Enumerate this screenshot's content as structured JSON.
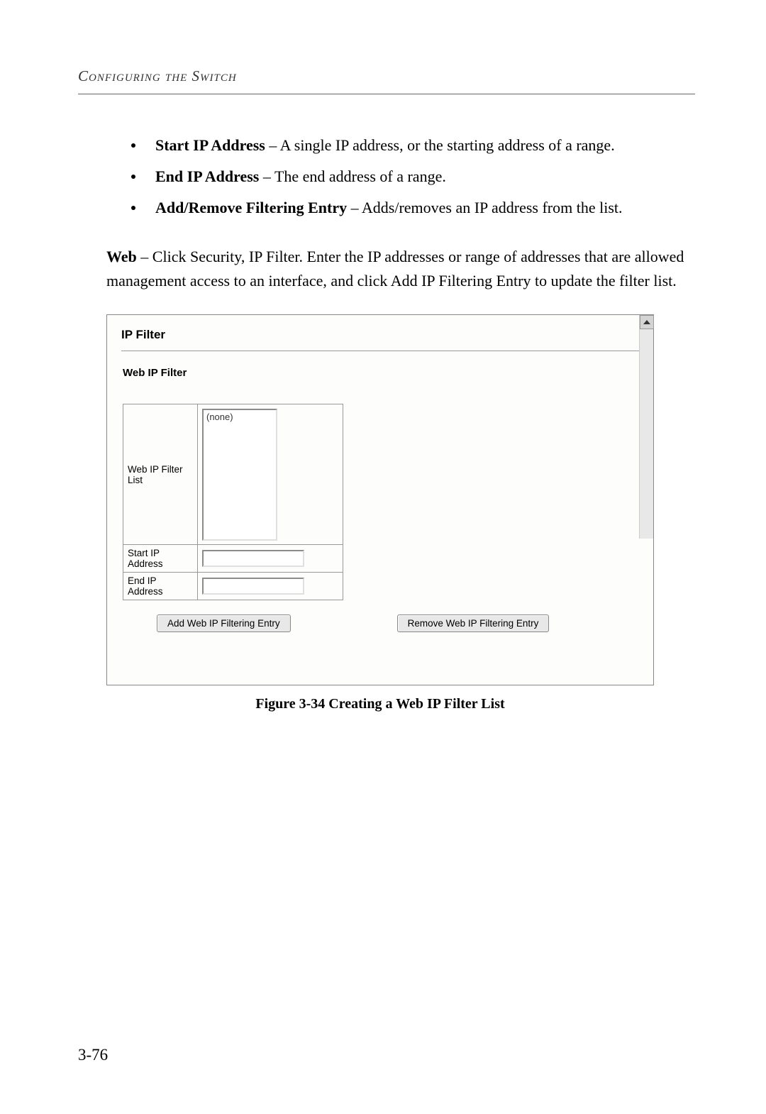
{
  "header": {
    "title": "Configuring the Switch"
  },
  "bullets": [
    {
      "bold": "Start IP Address",
      "text": " – A single IP address, or the starting address of a range."
    },
    {
      "bold": "End IP Address",
      "text": " – The end address of a range."
    },
    {
      "bold": "Add/Remove Filtering Entry",
      "text": " – Adds/removes an IP address from the list."
    }
  ],
  "paragraph": {
    "bold": "Web",
    "text": " – Click Security, IP Filter. Enter the IP addresses or range of addresses that are allowed management access to an interface, and click Add IP Filtering Entry to update the filter list."
  },
  "screenshot": {
    "title": "IP Filter",
    "subtitle": "Web IP Filter",
    "list_label": "Web IP Filter List",
    "list_content": "(none)",
    "start_label": "Start IP Address",
    "end_label": "End IP Address",
    "add_button": "Add Web IP Filtering Entry",
    "remove_button": "Remove Web IP Filtering Entry"
  },
  "caption": "Figure 3-34  Creating a Web IP Filter List",
  "page_number": "3-76"
}
